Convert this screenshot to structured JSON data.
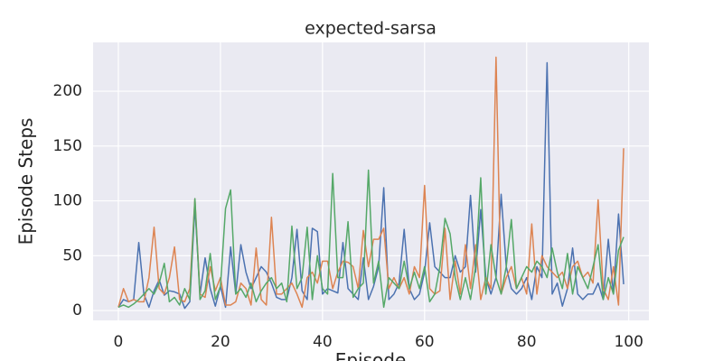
{
  "chart_data": {
    "type": "line",
    "title": "expected-sarsa",
    "xlabel": "Episode",
    "ylabel": "Episode Steps",
    "x": [
      0,
      1,
      2,
      3,
      4,
      5,
      6,
      7,
      8,
      9,
      10,
      11,
      12,
      13,
      14,
      15,
      16,
      17,
      18,
      19,
      20,
      21,
      22,
      23,
      24,
      25,
      26,
      27,
      28,
      29,
      30,
      31,
      32,
      33,
      34,
      35,
      36,
      37,
      38,
      39,
      40,
      41,
      42,
      43,
      44,
      45,
      46,
      47,
      48,
      49,
      50,
      51,
      52,
      53,
      54,
      55,
      56,
      57,
      58,
      59,
      60,
      61,
      62,
      63,
      64,
      65,
      66,
      67,
      68,
      69,
      70,
      71,
      72,
      73,
      74,
      75,
      76,
      77,
      78,
      79,
      80,
      81,
      82,
      83,
      84,
      85,
      86,
      87,
      88,
      89,
      90,
      91,
      92,
      93,
      94,
      95,
      96,
      97,
      98,
      99
    ],
    "series": [
      {
        "color": "#4c72b0",
        "values": [
          3,
          10,
          8,
          10,
          62,
          15,
          3,
          18,
          28,
          14,
          18,
          17,
          15,
          2,
          8,
          95,
          15,
          48,
          20,
          4,
          22,
          3,
          58,
          15,
          60,
          35,
          20,
          30,
          40,
          35,
          25,
          12,
          10,
          10,
          30,
          74,
          18,
          10,
          75,
          72,
          15,
          20,
          18,
          16,
          62,
          20,
          15,
          10,
          48,
          10,
          22,
          40,
          112,
          10,
          15,
          25,
          74,
          20,
          10,
          15,
          35,
          80,
          40,
          35,
          30,
          30,
          50,
          35,
          40,
          105,
          35,
          92,
          30,
          15,
          30,
          106,
          40,
          20,
          15,
          20,
          30,
          10,
          40,
          30,
          226,
          15,
          25,
          4,
          20,
          57,
          15,
          10,
          15,
          15,
          25,
          10,
          65,
          15,
          88,
          24
        ]
      },
      {
        "color": "#dd8452",
        "values": [
          3,
          20,
          8,
          10,
          8,
          8,
          30,
          76,
          20,
          15,
          30,
          58,
          10,
          8,
          20,
          102,
          15,
          12,
          40,
          18,
          30,
          5,
          5,
          8,
          25,
          20,
          5,
          57,
          10,
          5,
          85,
          15,
          15,
          20,
          25,
          15,
          3,
          30,
          35,
          25,
          45,
          45,
          20,
          35,
          45,
          44,
          40,
          20,
          73,
          40,
          65,
          65,
          75,
          20,
          30,
          20,
          30,
          15,
          40,
          30,
          114,
          20,
          15,
          18,
          75,
          10,
          45,
          15,
          60,
          20,
          60,
          10,
          30,
          20,
          231,
          15,
          30,
          40,
          20,
          30,
          15,
          79,
          15,
          50,
          40,
          35,
          30,
          35,
          20,
          40,
          45,
          30,
          35,
          25,
          101,
          20,
          10,
          40,
          5,
          148
        ]
      },
      {
        "color": "#55a868",
        "values": [
          3,
          5,
          3,
          6,
          10,
          15,
          20,
          15,
          25,
          43,
          8,
          12,
          5,
          20,
          10,
          102,
          10,
          18,
          52,
          10,
          22,
          93,
          110,
          15,
          20,
          12,
          25,
          8,
          18,
          25,
          30,
          20,
          25,
          8,
          77,
          20,
          30,
          76,
          10,
          50,
          20,
          15,
          125,
          30,
          30,
          81,
          12,
          20,
          25,
          128,
          25,
          45,
          3,
          30,
          25,
          20,
          45,
          20,
          35,
          20,
          40,
          8,
          15,
          40,
          84,
          70,
          30,
          10,
          30,
          10,
          40,
          121,
          15,
          60,
          30,
          15,
          40,
          83,
          20,
          30,
          40,
          35,
          45,
          40,
          30,
          57,
          35,
          20,
          52,
          15,
          40,
          30,
          20,
          40,
          60,
          10,
          30,
          15,
          55,
          67
        ]
      }
    ],
    "xlim": [
      -4.95,
      103.95
    ],
    "ylim": [
      -9,
      244.5
    ],
    "xticks": [
      0,
      20,
      40,
      60,
      80,
      100
    ],
    "yticks": [
      0,
      50,
      100,
      150,
      200
    ],
    "grid": true
  }
}
